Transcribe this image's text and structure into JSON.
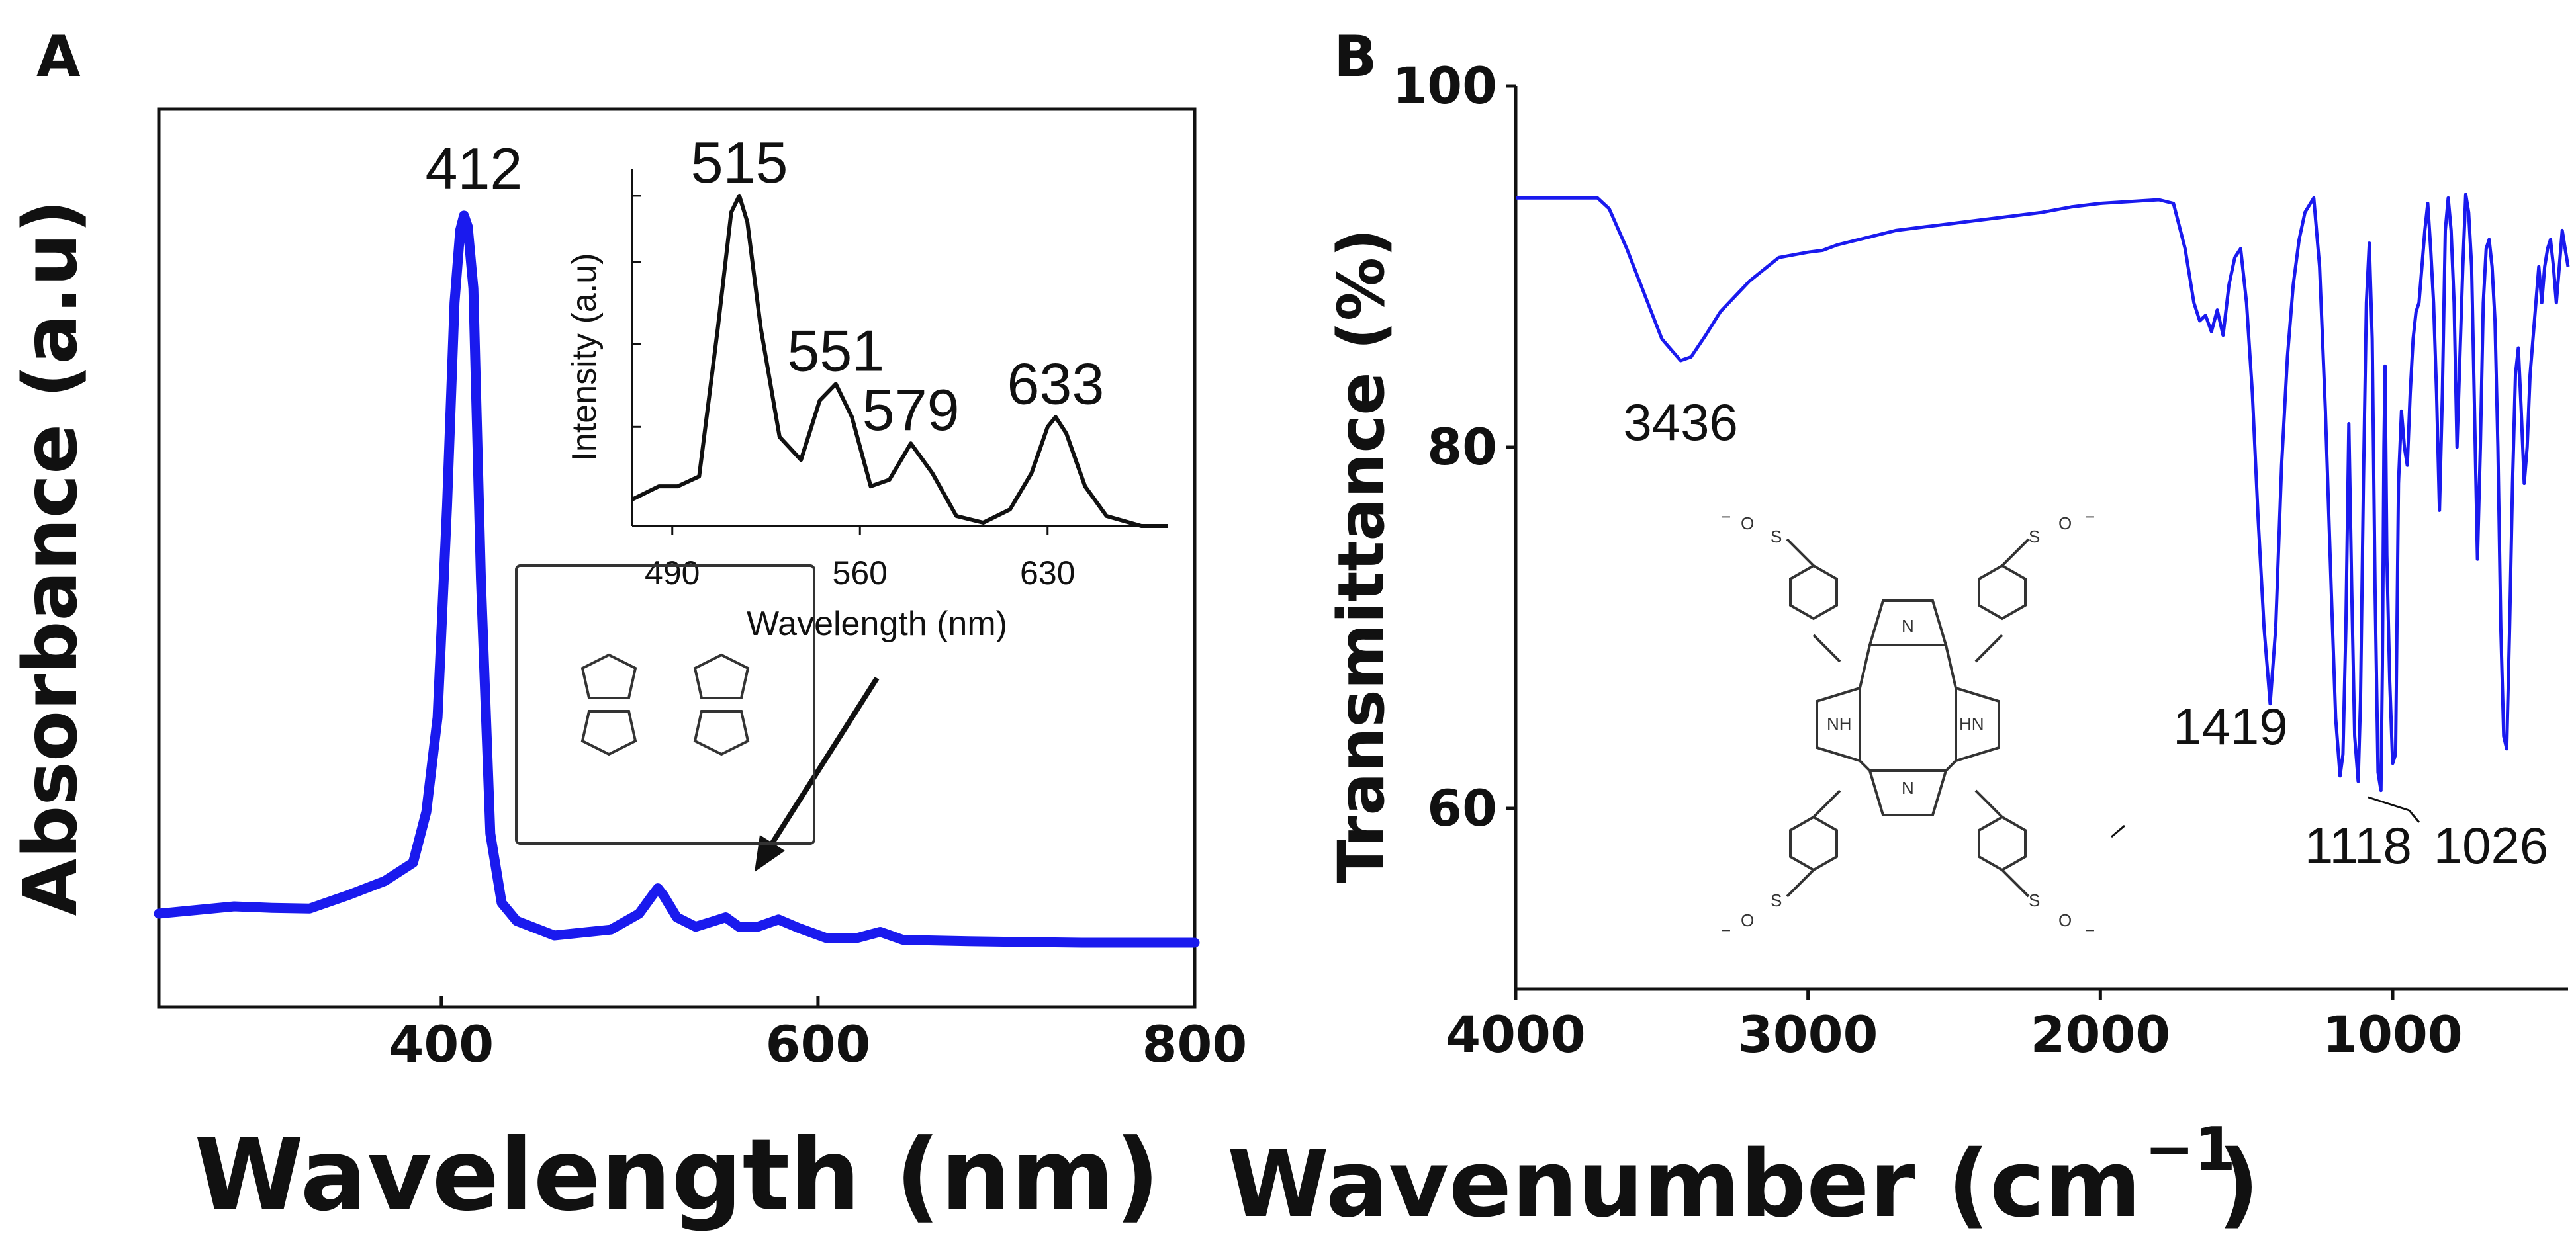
{
  "panels": {
    "a": {
      "letter": "A"
    },
    "b": {
      "letter": "B"
    }
  },
  "chart_data": [
    {
      "type": "line",
      "panel": "A",
      "title": "",
      "xlabel": "Wavelength (nm)",
      "ylabel": "Absorbance (a.u)",
      "xlim": [
        250,
        800
      ],
      "ylim": [
        0,
        1.06
      ],
      "xticks": [
        400,
        600,
        800
      ],
      "color": "#1a1aee",
      "series": [
        {
          "name": "absorbance",
          "x": [
            250,
            270,
            290,
            310,
            330,
            350,
            370,
            385,
            392,
            398,
            403,
            407,
            410,
            412,
            414,
            417,
            421,
            426,
            432,
            440,
            460,
            490,
            505,
            512,
            515,
            518,
            525,
            535,
            545,
            551,
            558,
            568,
            579,
            590,
            605,
            620,
            633,
            645,
            680,
            740,
            800
          ],
          "y": [
            0.04,
            0.045,
            0.05,
            0.048,
            0.047,
            0.065,
            0.085,
            0.11,
            0.18,
            0.31,
            0.6,
            0.88,
            0.98,
            1.0,
            0.985,
            0.9,
            0.5,
            0.15,
            0.055,
            0.03,
            0.01,
            0.018,
            0.04,
            0.065,
            0.075,
            0.065,
            0.035,
            0.022,
            0.03,
            0.035,
            0.022,
            0.022,
            0.032,
            0.02,
            0.006,
            0.006,
            0.015,
            0.004,
            0.002,
            0.0,
            0.0
          ]
        }
      ],
      "peak_labels": [
        {
          "x": 412,
          "label": "412"
        }
      ],
      "inset": {
        "xlabel": "Wavelength (nm)",
        "ylabel": "Intensity (a.u)",
        "xlim": [
          475,
          675
        ],
        "ylim": [
          0,
          1.08
        ],
        "xticks": [
          490,
          560,
          630
        ],
        "series": {
          "name": "fluorescence",
          "x": [
            475,
            485,
            492,
            500,
            507,
            512,
            515,
            518,
            523,
            530,
            538,
            545,
            551,
            557,
            564,
            571,
            579,
            587,
            596,
            606,
            616,
            624,
            630,
            633,
            637,
            644,
            652,
            665,
            675
          ],
          "y": [
            0.08,
            0.12,
            0.12,
            0.15,
            0.6,
            0.95,
            1.0,
            0.92,
            0.6,
            0.27,
            0.2,
            0.38,
            0.43,
            0.33,
            0.12,
            0.14,
            0.25,
            0.16,
            0.03,
            0.01,
            0.05,
            0.16,
            0.3,
            0.33,
            0.28,
            0.12,
            0.03,
            0.0,
            0.0
          ]
        },
        "peak_labels": [
          {
            "x": 515,
            "label": "515"
          },
          {
            "x": 551,
            "label": "551"
          },
          {
            "x": 579,
            "label": "579"
          },
          {
            "x": 633,
            "label": "633"
          }
        ]
      }
    },
    {
      "type": "line",
      "panel": "B",
      "title": "",
      "xlabel": "Wavenumber (cm",
      "xlabel_sup": "−1",
      "xlabel_close": ")",
      "ylabel": "Transmittance (%)",
      "xlim": [
        4000,
        400
      ],
      "ylim": [
        50,
        100
      ],
      "xticks": [
        4000,
        3000,
        2000,
        1000
      ],
      "yticks": [
        60,
        80,
        100
      ],
      "color": "#1a1aee",
      "series": [
        {
          "name": "transmittance",
          "x": [
            4000,
            3900,
            3800,
            3720,
            3680,
            3620,
            3560,
            3500,
            3436,
            3400,
            3350,
            3300,
            3200,
            3100,
            3000,
            2950,
            2900,
            2800,
            2700,
            2600,
            2500,
            2400,
            2300,
            2200,
            2100,
            2000,
            1900,
            1800,
            1750,
            1710,
            1680,
            1660,
            1640,
            1620,
            1600,
            1580,
            1560,
            1540,
            1520,
            1500,
            1480,
            1460,
            1440,
            1419,
            1400,
            1380,
            1360,
            1340,
            1320,
            1300,
            1270,
            1250,
            1230,
            1210,
            1195,
            1180,
            1170,
            1160,
            1150,
            1140,
            1130,
            1118,
            1110,
            1100,
            1090,
            1080,
            1070,
            1060,
            1050,
            1040,
            1035,
            1030,
            1026,
            1020,
            1010,
            1000,
            990,
            980,
            970,
            960,
            950,
            940,
            930,
            920,
            910,
            900,
            890,
            880,
            870,
            860,
            850,
            840,
            830,
            820,
            810,
            800,
            790,
            780,
            770,
            760,
            750,
            740,
            730,
            720,
            710,
            700,
            690,
            680,
            670,
            660,
            650,
            640,
            630,
            620,
            610,
            600,
            590,
            580,
            570,
            560,
            550,
            540,
            530,
            520,
            510,
            500,
            490,
            480,
            470,
            460,
            450,
            440,
            430,
            420,
            410,
            400
          ],
          "y": [
            93.8,
            93.8,
            93.8,
            93.8,
            93.2,
            91.0,
            88.5,
            86.0,
            84.8,
            85.0,
            86.2,
            87.5,
            89.2,
            90.5,
            90.8,
            90.9,
            91.2,
            91.6,
            92.0,
            92.2,
            92.4,
            92.6,
            92.8,
            93.0,
            93.3,
            93.5,
            93.6,
            93.7,
            93.5,
            91.0,
            88.0,
            87.0,
            87.3,
            86.4,
            87.6,
            86.2,
            89.0,
            90.5,
            91.0,
            88.0,
            83.0,
            76.0,
            70.0,
            65.8,
            70.0,
            79.0,
            85.0,
            89.0,
            91.5,
            93.0,
            93.8,
            90.0,
            82.0,
            72.0,
            65.0,
            61.8,
            63.0,
            70.0,
            81.3,
            72.0,
            64.0,
            61.5,
            66.0,
            78.0,
            88.0,
            91.3,
            86.0,
            72.0,
            62.0,
            61.0,
            68.0,
            80.0,
            84.5,
            74.0,
            67.0,
            62.5,
            63.0,
            78.0,
            82.0,
            80.0,
            79.0,
            83.0,
            86.0,
            87.5,
            88.0,
            90.0,
            92.0,
            93.5,
            91.0,
            88.0,
            83.0,
            76.5,
            83.0,
            92.0,
            93.8,
            92.0,
            88.0,
            80.0,
            85.0,
            90.0,
            94.0,
            93.0,
            90.0,
            82.0,
            73.8,
            80.0,
            88.0,
            91.0,
            91.5,
            90.0,
            87.0,
            80.0,
            70.0,
            64.0,
            63.3,
            70.0,
            78.0,
            84.0,
            85.5,
            82.0,
            78.0,
            80.0,
            84.0,
            86.0,
            88.0,
            90.0,
            88.0,
            90.0,
            91.0,
            91.5,
            90.0,
            88.0,
            90.0,
            92.0,
            91.0,
            90.0
          ]
        }
      ],
      "peak_labels": [
        {
          "x": 3436,
          "label": "3436"
        },
        {
          "x": 1419,
          "label": "1419"
        },
        {
          "x": 1118,
          "label": "1118"
        },
        {
          "x": 1026,
          "label": "1026"
        }
      ],
      "structure_labels": {
        "nh_left": "NH",
        "nh_right": "HN",
        "n_top": "N",
        "n_bottom": "N",
        "sulfur": "S",
        "oxygen": "O",
        "charge": "−"
      }
    }
  ]
}
